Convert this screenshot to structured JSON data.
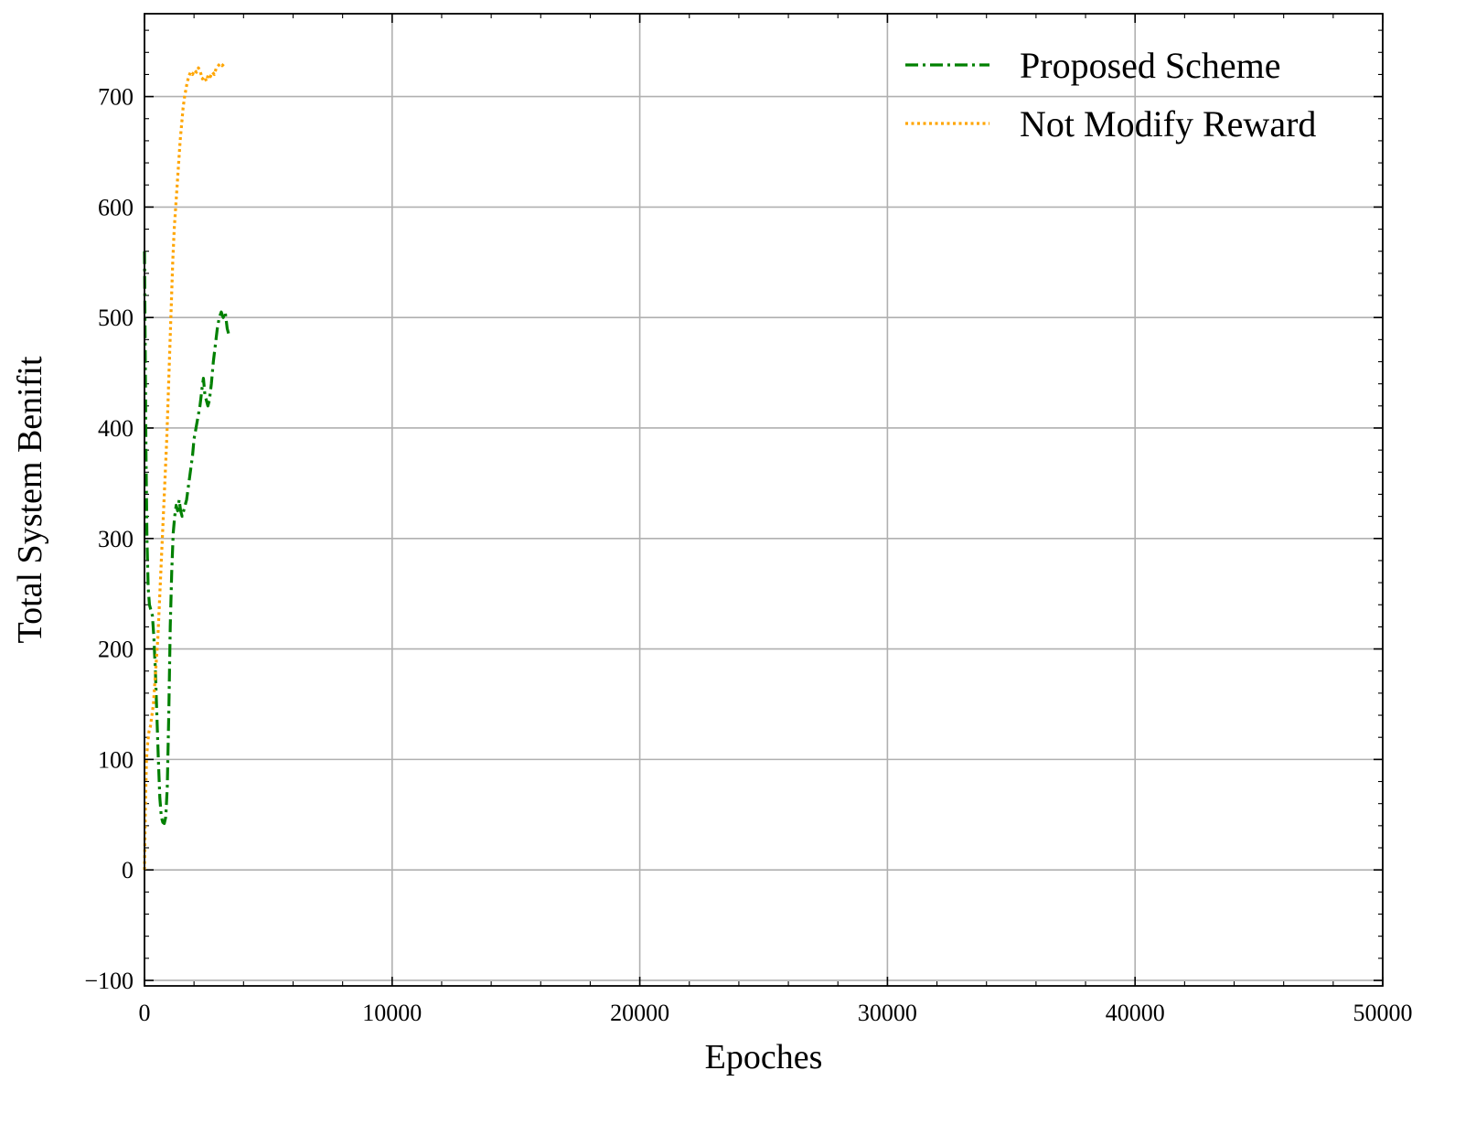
{
  "chart_data": {
    "type": "line",
    "title": "",
    "xlabel": "Epoches",
    "ylabel": "Total System Benifit",
    "xlim": [
      0,
      50000
    ],
    "ylim": [
      -105,
      775
    ],
    "xticks": [
      0,
      10000,
      20000,
      30000,
      40000,
      50000
    ],
    "xtick_labels": [
      "0",
      "10000",
      "20000",
      "30000",
      "40000",
      "50000"
    ],
    "yticks": [
      -100,
      0,
      100,
      200,
      300,
      400,
      500,
      600,
      700
    ],
    "ytick_labels": [
      "−100",
      "0",
      "100",
      "200",
      "300",
      "400",
      "500",
      "600",
      "700"
    ],
    "grid": true,
    "legend_position": "top-right",
    "series": [
      {
        "name": "Proposed Scheme",
        "color": "#008000",
        "linestyle": "dashdot",
        "points": [
          [
            0,
            560
          ],
          [
            30,
            470
          ],
          [
            60,
            380
          ],
          [
            100,
            300
          ],
          [
            150,
            255
          ],
          [
            200,
            240
          ],
          [
            260,
            235
          ],
          [
            320,
            230
          ],
          [
            380,
            210
          ],
          [
            440,
            180
          ],
          [
            500,
            140
          ],
          [
            560,
            100
          ],
          [
            620,
            65
          ],
          [
            680,
            48
          ],
          [
            740,
            43
          ],
          [
            800,
            42
          ],
          [
            860,
            48
          ],
          [
            920,
            75
          ],
          [
            980,
            140
          ],
          [
            1040,
            220
          ],
          [
            1100,
            270
          ],
          [
            1160,
            305
          ],
          [
            1220,
            320
          ],
          [
            1280,
            330
          ],
          [
            1340,
            325
          ],
          [
            1400,
            335
          ],
          [
            1460,
            325
          ],
          [
            1520,
            320
          ],
          [
            1580,
            325
          ],
          [
            1640,
            330
          ],
          [
            1700,
            335
          ],
          [
            1760,
            345
          ],
          [
            1820,
            355
          ],
          [
            1880,
            365
          ],
          [
            1940,
            375
          ],
          [
            2000,
            390
          ],
          [
            2080,
            400
          ],
          [
            2160,
            410
          ],
          [
            2240,
            420
          ],
          [
            2320,
            435
          ],
          [
            2380,
            445
          ],
          [
            2440,
            430
          ],
          [
            2500,
            425
          ],
          [
            2560,
            420
          ],
          [
            2620,
            425
          ],
          [
            2700,
            440
          ],
          [
            2780,
            460
          ],
          [
            2860,
            475
          ],
          [
            2940,
            490
          ],
          [
            3020,
            500
          ],
          [
            3100,
            505
          ],
          [
            3180,
            500
          ],
          [
            3260,
            505
          ],
          [
            3340,
            490
          ],
          [
            3400,
            485
          ]
        ]
      },
      {
        "name": "Not Modify Reward",
        "color": "#FFA500",
        "linestyle": "dotted",
        "points": [
          [
            0,
            0
          ],
          [
            40,
            60
          ],
          [
            80,
            100
          ],
          [
            130,
            115
          ],
          [
            180,
            125
          ],
          [
            240,
            130
          ],
          [
            300,
            140
          ],
          [
            360,
            150
          ],
          [
            420,
            170
          ],
          [
            480,
            190
          ],
          [
            540,
            210
          ],
          [
            600,
            240
          ],
          [
            660,
            270
          ],
          [
            720,
            300
          ],
          [
            780,
            330
          ],
          [
            840,
            360
          ],
          [
            900,
            390
          ],
          [
            960,
            430
          ],
          [
            1020,
            470
          ],
          [
            1080,
            510
          ],
          [
            1140,
            550
          ],
          [
            1200,
            580
          ],
          [
            1260,
            600
          ],
          [
            1320,
            620
          ],
          [
            1380,
            640
          ],
          [
            1440,
            660
          ],
          [
            1500,
            675
          ],
          [
            1560,
            690
          ],
          [
            1620,
            700
          ],
          [
            1700,
            710
          ],
          [
            1780,
            718
          ],
          [
            1860,
            722
          ],
          [
            1940,
            720
          ],
          [
            2020,
            724
          ],
          [
            2100,
            722
          ],
          [
            2180,
            726
          ],
          [
            2260,
            722
          ],
          [
            2340,
            716
          ],
          [
            2420,
            718
          ],
          [
            2500,
            714
          ],
          [
            2580,
            720
          ],
          [
            2660,
            718
          ],
          [
            2740,
            722
          ],
          [
            2820,
            720
          ],
          [
            2900,
            726
          ],
          [
            2980,
            728
          ],
          [
            3060,
            730
          ],
          [
            3140,
            728
          ],
          [
            3220,
            730
          ]
        ]
      }
    ]
  }
}
